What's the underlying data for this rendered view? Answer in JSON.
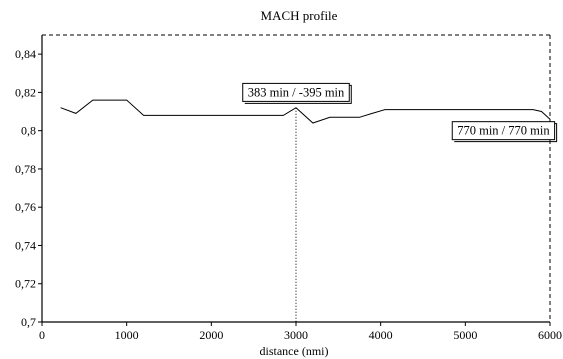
{
  "chart_data": {
    "type": "line",
    "title": "MACH profile",
    "xlabel": "distance (nmi)",
    "ylabel": "",
    "xlim": [
      0,
      6000
    ],
    "ylim": [
      0.7,
      0.85
    ],
    "x_ticks": [
      "0",
      "1000",
      "2000",
      "3000",
      "4000",
      "5000",
      "6000"
    ],
    "y_ticks": [
      "0,7",
      "0,72",
      "0,74",
      "0,76",
      "0,78",
      "0,8",
      "0,82",
      "0,84"
    ],
    "grid": false,
    "series": [
      {
        "points": [
          [
            220,
            0.812
          ],
          [
            400,
            0.809
          ],
          [
            600,
            0.816
          ],
          [
            1000,
            0.816
          ],
          [
            1200,
            0.808
          ],
          [
            2850,
            0.808
          ],
          [
            3000,
            0.812
          ],
          [
            3200,
            0.804
          ],
          [
            3400,
            0.807
          ],
          [
            3750,
            0.807
          ],
          [
            3900,
            0.809
          ],
          [
            4050,
            0.811
          ],
          [
            5800,
            0.811
          ],
          [
            5900,
            0.81
          ],
          [
            6000,
            0.806
          ]
        ]
      }
    ],
    "marker_line": {
      "x": 3000
    },
    "annotations": [
      {
        "text": "383 min / -395 min",
        "x": 3000,
        "y": 0.82
      },
      {
        "text": "770 min / 770 min",
        "x": 5450,
        "y": 0.8
      }
    ]
  }
}
